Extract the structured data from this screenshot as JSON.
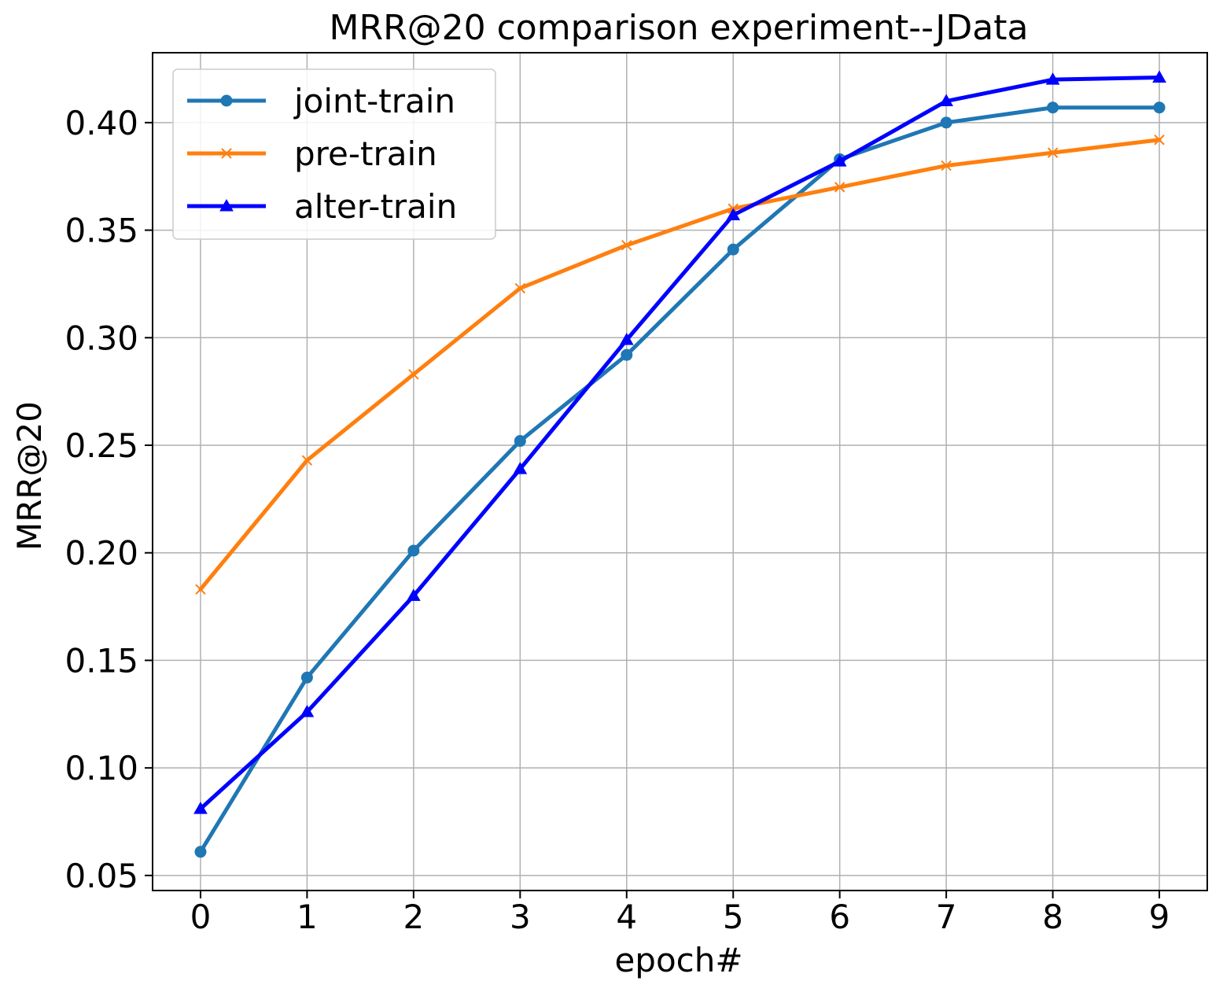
{
  "chart_data": {
    "type": "line",
    "title": "MRR@20 comparison experiment--JData",
    "xlabel": "epoch#",
    "ylabel": "MRR@20",
    "x": [
      0,
      1,
      2,
      3,
      4,
      5,
      6,
      7,
      8,
      9
    ],
    "x_ticks": [
      "0",
      "1",
      "2",
      "3",
      "4",
      "5",
      "6",
      "7",
      "8",
      "9"
    ],
    "y_ticks": [
      "0.05",
      "0.10",
      "0.15",
      "0.20",
      "0.25",
      "0.30",
      "0.35",
      "0.40"
    ],
    "xlim": [
      -0.45,
      9.45
    ],
    "ylim": [
      0.043,
      0.4325
    ],
    "grid": true,
    "legend_position": "top-left",
    "series": [
      {
        "name": "joint-train",
        "color": "#1f77b4",
        "marker": "circle",
        "values": [
          0.061,
          0.142,
          0.201,
          0.252,
          0.292,
          0.341,
          0.383,
          0.4,
          0.407,
          0.407
        ]
      },
      {
        "name": "pre-train",
        "color": "#ff7f0e",
        "marker": "x",
        "values": [
          0.183,
          0.243,
          0.283,
          0.323,
          0.343,
          0.36,
          0.37,
          0.38,
          0.386,
          0.392
        ]
      },
      {
        "name": "alter-train",
        "color": "#0000ff",
        "marker": "triangle",
        "values": [
          0.081,
          0.126,
          0.18,
          0.239,
          0.299,
          0.357,
          0.382,
          0.41,
          0.42,
          0.421
        ]
      }
    ]
  }
}
